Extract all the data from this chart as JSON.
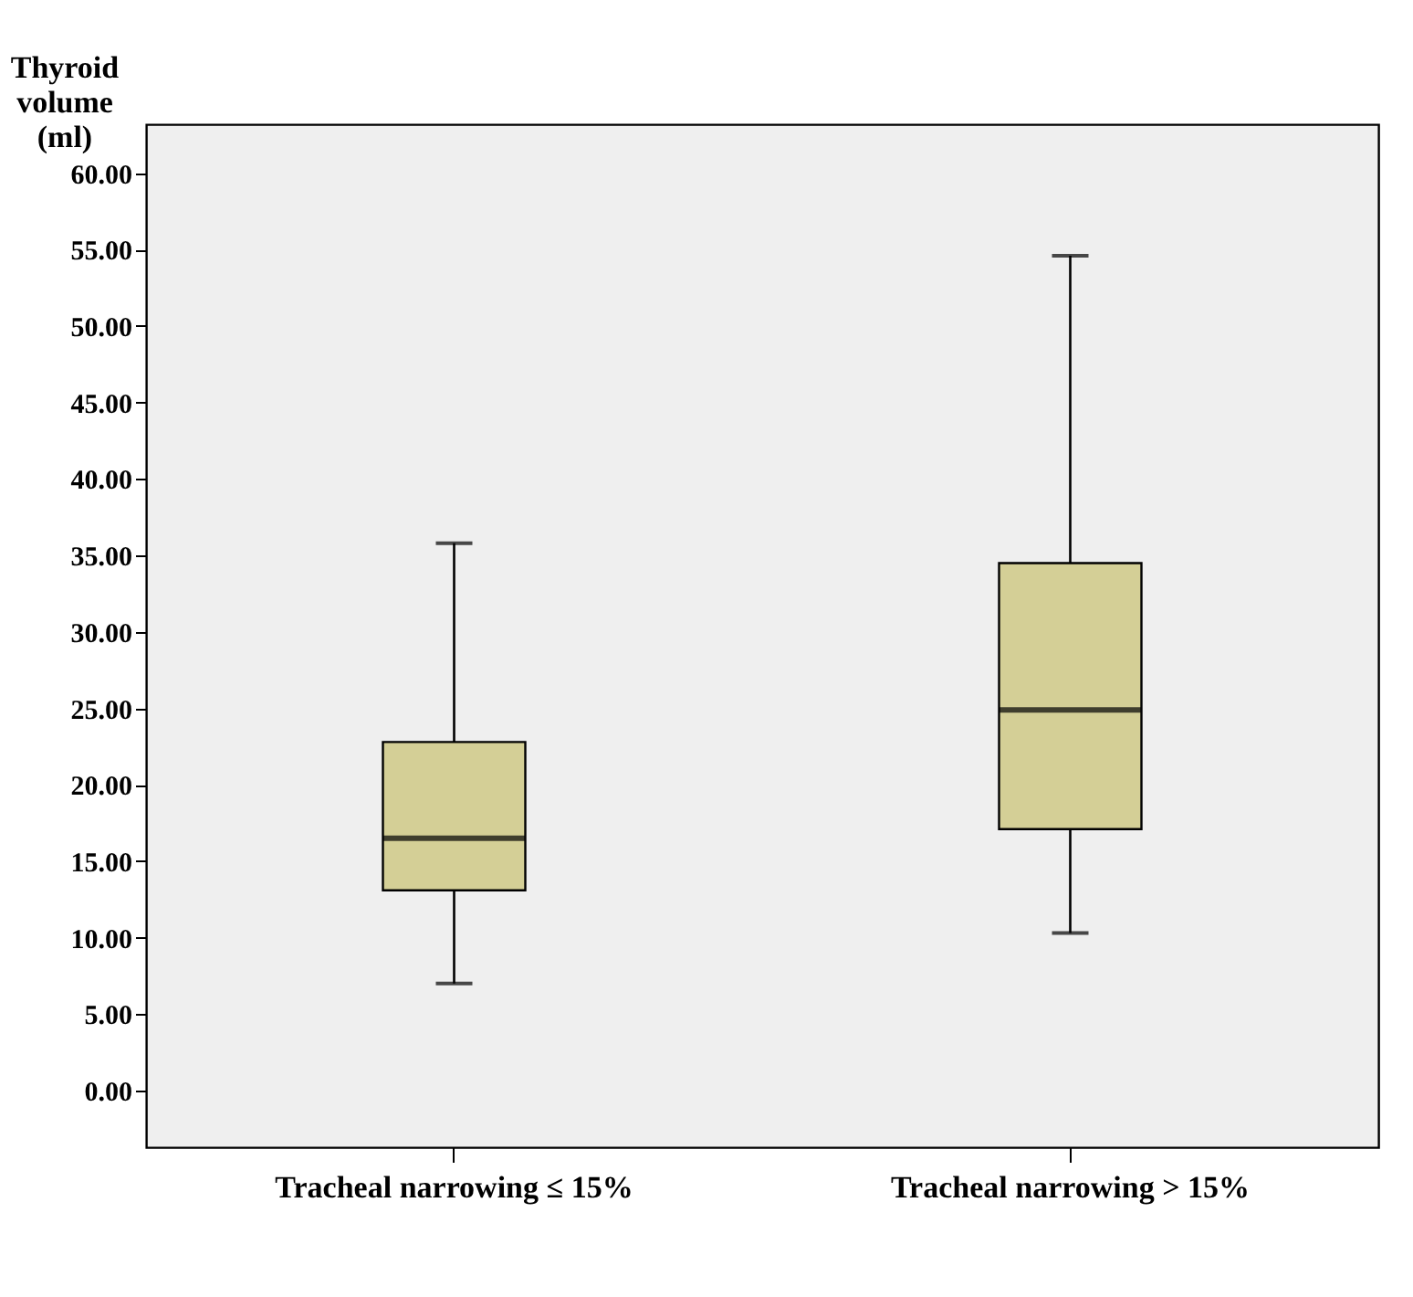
{
  "chart_data": {
    "type": "box",
    "ylabel": "Thyroid volume (ml)",
    "categories": [
      "Tracheal narrowing ≤ 15%",
      "Tracheal narrowing > 15%"
    ],
    "boxes": [
      {
        "low": 7.0,
        "q1": 13.1,
        "median": 16.5,
        "q3": 22.8,
        "high": 35.8
      },
      {
        "low": 10.3,
        "q1": 17.1,
        "median": 24.9,
        "q3": 34.5,
        "high": 54.6
      }
    ],
    "color": "#d4cf96",
    "ylim": [
      -3.7,
      63.2
    ],
    "yticks": [
      {
        "value": 0,
        "label": "0.00"
      },
      {
        "value": 5,
        "label": "5.00"
      },
      {
        "value": 10,
        "label": "10.00"
      },
      {
        "value": 15,
        "label": "15.00"
      },
      {
        "value": 20,
        "label": "20.00"
      },
      {
        "value": 25,
        "label": "25.00"
      },
      {
        "value": 30,
        "label": "30.00"
      },
      {
        "value": 35,
        "label": "35.00"
      },
      {
        "value": 40,
        "label": "40.00"
      },
      {
        "value": 45,
        "label": "45.00"
      },
      {
        "value": 50,
        "label": "50.00"
      },
      {
        "value": 55,
        "label": "55.00"
      },
      {
        "value": 60,
        "label": "60.00"
      }
    ],
    "grid": false
  }
}
